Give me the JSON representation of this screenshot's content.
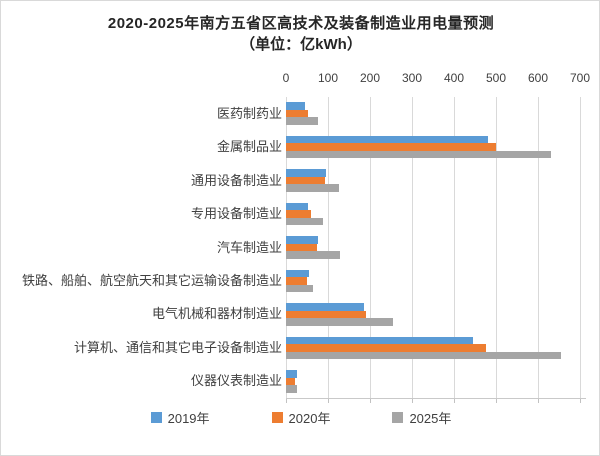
{
  "chart_data": {
    "type": "bar",
    "orientation": "horizontal",
    "title": "2020-2025年南方五省区高技术及装备制造业用电量预测",
    "subtitle": "（单位：亿kWh）",
    "categories": [
      "医药制药业",
      "金属制品业",
      "通用设备制造业",
      "专用设备制造业",
      "汽车制造业",
      "铁路、船舶、航空航天和其它运输设备制造业",
      "电气机械和器材制造业",
      "计算机、通信和其它电子设备制造业",
      "仪器仪表制造业"
    ],
    "series": [
      {
        "name": "2019年",
        "color": "#5B9BD5",
        "values": [
          45,
          480,
          95,
          52,
          75,
          55,
          185,
          445,
          25
        ]
      },
      {
        "name": "2020年",
        "color": "#ED7D31",
        "values": [
          53,
          500,
          92,
          60,
          73,
          50,
          190,
          475,
          22
        ]
      },
      {
        "name": "2025年",
        "color": "#A5A5A5",
        "values": [
          77,
          630,
          125,
          87,
          128,
          65,
          255,
          655,
          27
        ]
      }
    ],
    "x_axis": {
      "position": "top",
      "min": 0,
      "max": 700,
      "tick_interval": 100,
      "ticks": [
        0,
        100,
        200,
        300,
        400,
        500,
        600,
        700
      ]
    },
    "grid": true,
    "legend_position": "bottom",
    "colors": {
      "gridline": "#d9d9d9",
      "axis_line": "#c9c9c9",
      "text": "#404040",
      "title_text": "#262626",
      "background": "#ffffff"
    }
  }
}
